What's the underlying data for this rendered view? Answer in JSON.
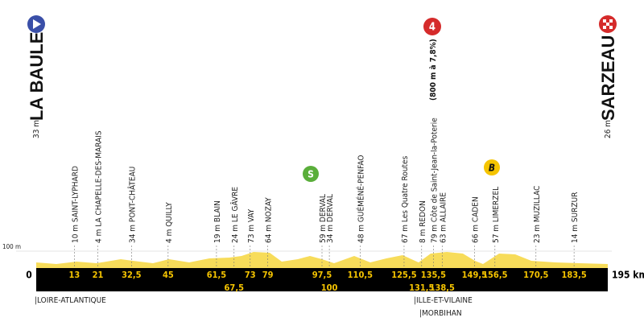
{
  "start": {
    "name": "LA BAULE",
    "altitude": "33 m"
  },
  "finish": {
    "name": "SARZEAU",
    "altitude": "26 m"
  },
  "climb": {
    "category": "4",
    "detail": "(800 m à 7,8%)"
  },
  "sprint": "S",
  "bonus": "B",
  "altitude_mark": "100 m",
  "distance": {
    "start": "0",
    "end": "195 km"
  },
  "waypoints": [
    {
      "label": "10 m SAINT-LYPHARD",
      "km": "13"
    },
    {
      "label": "4 m LA CHAPELLE-DES-MARAIS",
      "km": "21"
    },
    {
      "label": "34 m PONT-CHÂTEAU",
      "km": "32,5"
    },
    {
      "label": "4 m QUILLY",
      "km": "45"
    },
    {
      "label": "19 m BLAIN",
      "km": "61,5"
    },
    {
      "label": "24 m LE GÂVRE",
      "km": "67,5"
    },
    {
      "label": "73 m VAY",
      "km": "73"
    },
    {
      "label": "64 m NOZAY",
      "km": "79"
    },
    {
      "label": "59 m DERVAL",
      "km": "97,5"
    },
    {
      "label": "34 m DERVAL",
      "km": "100"
    },
    {
      "label": "48 m GUÉMÉNÉ-PENFAO",
      "km": "110,5"
    },
    {
      "label": "67 m Les Quatre Routes",
      "km": "125,5"
    },
    {
      "label": "8 m REDON",
      "km": "131,5"
    },
    {
      "label": "79 m Côte de Saint-Jean-la-Poterie",
      "km": "135,5"
    },
    {
      "label": "63 m ALLAIRE",
      "km": "138,5"
    },
    {
      "label": "66 m CADEN",
      "km": "149,5"
    },
    {
      "label": "57 m LIMERZEL",
      "km": "156,5"
    },
    {
      "label": "23 m MUZILLAC",
      "km": "170,5"
    },
    {
      "label": "14 m SURZUR",
      "km": "183,5"
    }
  ],
  "departments": [
    "|LOIRE-ATLANTIQUE",
    "|ILLE-ET-VILAINE",
    "|MORBIHAN"
  ]
}
